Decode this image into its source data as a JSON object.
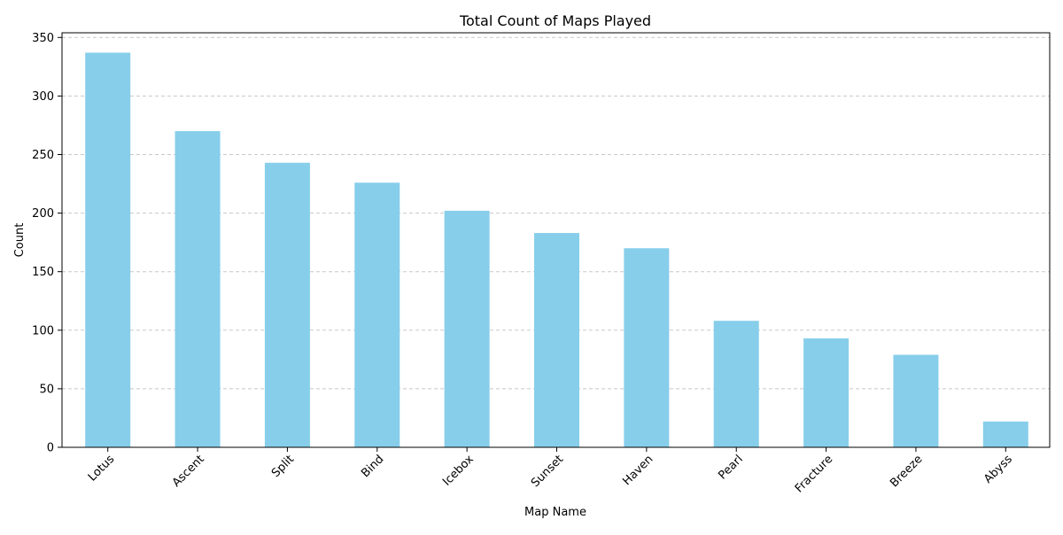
{
  "chart_data": {
    "type": "bar",
    "title": "Total Count of Maps Played",
    "xlabel": "Map Name",
    "ylabel": "Count",
    "categories": [
      "Lotus",
      "Ascent",
      "Split",
      "Bind",
      "Icebox",
      "Sunset",
      "Haven",
      "Pearl",
      "Fracture",
      "Breeze",
      "Abyss"
    ],
    "values": [
      337,
      270,
      243,
      226,
      202,
      183,
      170,
      108,
      93,
      79,
      22
    ],
    "ylim": [
      0,
      354
    ],
    "yticks": [
      0,
      50,
      100,
      150,
      200,
      250,
      300,
      350
    ],
    "grid": "y-dashed",
    "bar_color": "#87ceeb",
    "grid_color": "#c8c8c8",
    "tick_label_rotation": "45deg"
  }
}
